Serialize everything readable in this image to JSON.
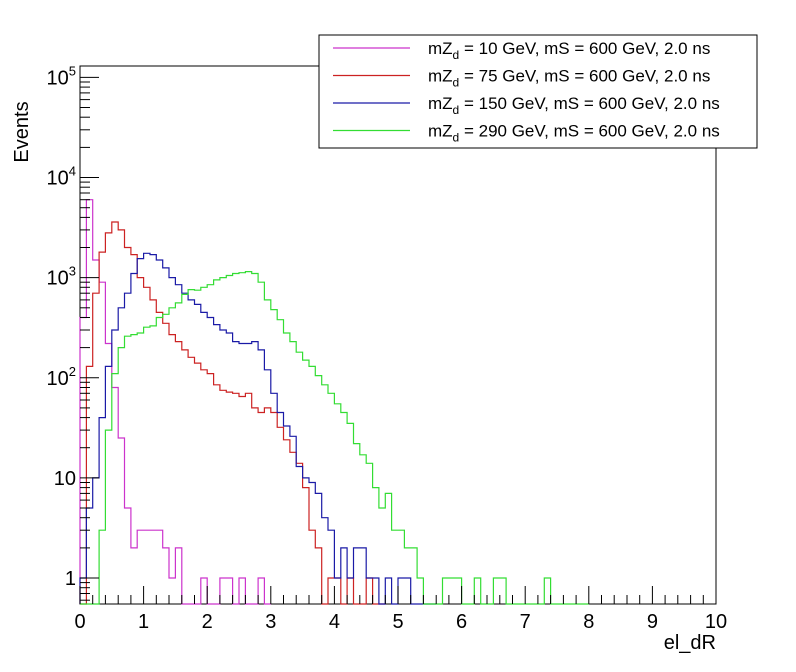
{
  "chart_data": {
    "type": "histogram",
    "xlabel": "el_dR",
    "ylabel": "Events",
    "xlim": [
      0,
      10
    ],
    "ylim": [
      0.55,
      130000
    ],
    "yscale": "log",
    "bin_width": 0.1,
    "grid": false,
    "legend_position": "top-right",
    "x_ticks": [
      "0",
      "1",
      "2",
      "3",
      "4",
      "5",
      "6",
      "7",
      "8",
      "9",
      "10"
    ],
    "y_ticks": [
      {
        "value": 1,
        "label": "1",
        "sup": ""
      },
      {
        "value": 10,
        "label": "10",
        "sup": ""
      },
      {
        "value": 100,
        "label": "10",
        "sup": "2"
      },
      {
        "value": 1000,
        "label": "10",
        "sup": "3"
      },
      {
        "value": 10000,
        "label": "10",
        "sup": "4"
      },
      {
        "value": 100000,
        "label": "10",
        "sup": "5"
      }
    ],
    "series": [
      {
        "name": "mZ_d = 10 GeV, mS = 600 GeV, 2.0 ns",
        "legend_parts": {
          "pre": "mZ",
          "sub": "d",
          "post": " = 10 GeV, mS = 600 GeV, 2.0 ns"
        },
        "color": "#cc33cc",
        "values": [
          400,
          6000,
          1500,
          900,
          220,
          80,
          25,
          5,
          2,
          3,
          3,
          3,
          3,
          2,
          1,
          2,
          0,
          0,
          0,
          1,
          0,
          0,
          1,
          1,
          0,
          1,
          0,
          0,
          1,
          0
        ]
      },
      {
        "name": "mZ_d = 75 GeV, mS = 600 GeV, 2.0 ns",
        "legend_parts": {
          "pre": "mZ",
          "sub": "d",
          "post": " = 75 GeV, mS = 600 GeV, 2.0 ns"
        },
        "color": "#cc2222",
        "values": [
          0,
          130,
          700,
          1800,
          2800,
          3600,
          3000,
          2000,
          1700,
          1000,
          800,
          600,
          450,
          350,
          270,
          230,
          190,
          160,
          140,
          120,
          110,
          85,
          75,
          72,
          70,
          65,
          70,
          50,
          45,
          50,
          45,
          32,
          24,
          18,
          14,
          8,
          3,
          2,
          0,
          1,
          1,
          0,
          1,
          0,
          0,
          1,
          0,
          0
        ]
      },
      {
        "name": "mZ_d = 150 GeV, mS = 600 GeV, 2.0 ns",
        "legend_parts": {
          "pre": "mZ",
          "sub": "d",
          "post": " = 150 GeV, mS = 600 GeV, 2.0 ns"
        },
        "color": "#1a1aa6",
        "values": [
          1,
          5,
          10,
          40,
          130,
          300,
          500,
          700,
          1100,
          1550,
          1750,
          1700,
          1500,
          1250,
          1000,
          850,
          700,
          600,
          540,
          450,
          400,
          340,
          300,
          280,
          230,
          220,
          220,
          230,
          190,
          120,
          70,
          45,
          33,
          26,
          13,
          10,
          9,
          7,
          4,
          3,
          1,
          2,
          1,
          2,
          2,
          1,
          1,
          0,
          1,
          0,
          1,
          1,
          0,
          0,
          0,
          0
        ]
      },
      {
        "name": "mZ_d = 290 GeV, mS = 600 GeV, 2.0 ns",
        "legend_parts": {
          "pre": "mZ",
          "sub": "d",
          "post": " = 290 GeV, mS = 600 GeV, 2.0 ns"
        },
        "color": "#33dd33",
        "values": [
          0,
          0,
          0,
          3,
          30,
          110,
          200,
          260,
          270,
          280,
          320,
          330,
          400,
          430,
          500,
          560,
          680,
          760,
          750,
          800,
          850,
          950,
          1000,
          1050,
          1100,
          1120,
          1150,
          1100,
          900,
          600,
          480,
          380,
          280,
          230,
          180,
          150,
          130,
          105,
          85,
          70,
          55,
          45,
          35,
          22,
          17,
          14,
          8,
          5,
          7,
          3,
          3,
          2,
          2,
          1,
          0,
          0,
          0,
          1,
          1,
          1,
          0,
          0,
          1,
          0,
          0,
          1,
          1,
          0,
          0,
          0,
          0,
          0,
          0,
          1,
          0,
          0,
          0,
          0,
          0,
          0
        ]
      }
    ]
  }
}
